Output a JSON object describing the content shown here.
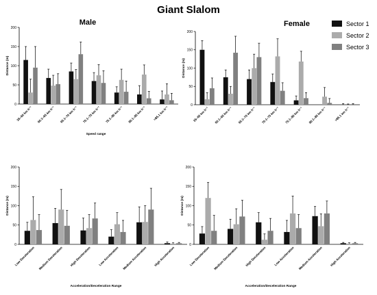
{
  "figure_title": "Giant Slalom",
  "legend": {
    "entries": [
      "Sector 1",
      "Sector 2",
      "Sector 3"
    ],
    "colors": [
      "#111111",
      "#ababab",
      "#808080"
    ]
  },
  "chart_data": [
    {
      "type": "bar",
      "title": "Male",
      "xlabel": "Speed range",
      "ylabel": "Distance (m)",
      "ylim": [
        0,
        200
      ],
      "yticks": [
        0,
        50,
        100,
        150,
        200
      ],
      "categories": [
        "35–60 km h⁻¹",
        "60.1–65 km h⁻¹",
        "65.1–70 km h⁻¹",
        "70.1–75 km h⁻¹",
        "75.1–80 km h⁻¹",
        "80.1–85 km h⁻¹",
        ">85.1 km h⁻¹"
      ],
      "series": [
        {
          "name": "Sector 1",
          "values": [
            115,
            68,
            85,
            60,
            30,
            25,
            12
          ],
          "errors": [
            35,
            23,
            22,
            22,
            15,
            23,
            22
          ]
        },
        {
          "name": "Sector 2",
          "values": [
            30,
            48,
            65,
            75,
            63,
            77,
            25
          ],
          "errors": [
            35,
            27,
            25,
            28,
            28,
            25,
            28
          ]
        },
        {
          "name": "Sector 3",
          "values": [
            95,
            52,
            130,
            55,
            32,
            15,
            10
          ],
          "errors": [
            55,
            27,
            32,
            32,
            28,
            18,
            18
          ]
        }
      ]
    },
    {
      "type": "bar",
      "title": "Female",
      "xlabel": "",
      "ylabel": "Distance (m)",
      "ylim": [
        0,
        200
      ],
      "yticks": [
        0,
        50,
        100,
        150,
        200
      ],
      "categories": [
        "35–60 km h⁻¹",
        "60.1–65 km h⁻¹",
        "65.1–70 km h⁻¹",
        "70.1–75 km h⁻¹",
        "75.1–80 km h⁻¹",
        "80.1–85 km h⁻¹",
        ">85.1 km h⁻¹"
      ],
      "series": [
        {
          "name": "Sector 1",
          "values": [
            150,
            75,
            70,
            62,
            12,
            0,
            0
          ],
          "errors": [
            25,
            20,
            25,
            22,
            12,
            0,
            3
          ]
        },
        {
          "name": "Sector 2",
          "values": [
            15,
            30,
            100,
            132,
            118,
            22,
            0
          ],
          "errors": [
            18,
            20,
            38,
            48,
            28,
            25,
            2
          ]
        },
        {
          "name": "Sector 3",
          "values": [
            45,
            142,
            130,
            38,
            18,
            5,
            0
          ],
          "errors": [
            28,
            45,
            38,
            22,
            15,
            12,
            3
          ]
        }
      ]
    },
    {
      "type": "bar",
      "title": "",
      "xlabel": "Acceleration/Deceleration Range",
      "ylabel": "Distance (m)",
      "ylim": [
        0,
        200
      ],
      "yticks": [
        0,
        50,
        100,
        150,
        200
      ],
      "categories": [
        "Low Deceleration",
        "Medium Deceleration",
        "High Deceleration",
        "Low Acceleration",
        "Medium Acceleration",
        "High Acceleration"
      ],
      "series": [
        {
          "name": "Sector 1",
          "values": [
            35,
            55,
            36,
            20,
            57,
            3
          ],
          "errors": [
            22,
            38,
            32,
            18,
            40,
            3
          ]
        },
        {
          "name": "Sector 2",
          "values": [
            63,
            90,
            42,
            52,
            58,
            2
          ],
          "errors": [
            60,
            52,
            35,
            30,
            42,
            2
          ]
        },
        {
          "name": "Sector 3",
          "values": [
            37,
            48,
            67,
            32,
            90,
            3
          ],
          "errors": [
            40,
            40,
            40,
            30,
            55,
            2
          ]
        }
      ]
    },
    {
      "type": "bar",
      "title": "",
      "xlabel": "Acceleration/Deceleration Range",
      "ylabel": "Distance (m)",
      "ylim": [
        0,
        200
      ],
      "yticks": [
        0,
        50,
        100,
        150,
        200
      ],
      "categories": [
        "Low Deceleration",
        "Medium Deceleration",
        "High Deceleration",
        "Low Acceleration",
        "Medium Acceleration",
        "High Acceleration"
      ],
      "series": [
        {
          "name": "Sector 1",
          "values": [
            28,
            40,
            57,
            32,
            73,
            3
          ],
          "errors": [
            18,
            25,
            25,
            30,
            25,
            2
          ]
        },
        {
          "name": "Sector 2",
          "values": [
            120,
            52,
            12,
            80,
            47,
            2
          ],
          "errors": [
            40,
            40,
            15,
            45,
            32,
            2
          ]
        },
        {
          "name": "Sector 3",
          "values": [
            35,
            72,
            35,
            42,
            80,
            3
          ],
          "errors": [
            40,
            42,
            32,
            35,
            32,
            2
          ]
        }
      ]
    }
  ]
}
